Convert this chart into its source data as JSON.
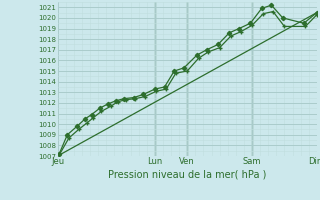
{
  "title": "Pression niveau de la mer( hPa )",
  "bg_color": "#cce8ec",
  "grid_major_color": "#aacccc",
  "grid_minor_color": "#c0dede",
  "line_color": "#2d6e2d",
  "ylim": [
    1007,
    1021.5
  ],
  "yticks": [
    1007,
    1008,
    1009,
    1010,
    1011,
    1012,
    1013,
    1014,
    1015,
    1016,
    1017,
    1018,
    1019,
    1020,
    1021
  ],
  "day_labels": [
    "Jeu",
    "Lun",
    "Ven",
    "Sam",
    "Dim"
  ],
  "day_positions": [
    0,
    3.0,
    4.0,
    6.0,
    8.0
  ],
  "series1_x": [
    0.05,
    0.35,
    0.65,
    0.9,
    1.1,
    1.35,
    1.65,
    1.85,
    2.1,
    2.4,
    2.7,
    3.05,
    3.35,
    3.65,
    4.0,
    4.35,
    4.65,
    5.0,
    5.35,
    5.65,
    6.0,
    6.35,
    6.65,
    7.0,
    7.65,
    8.0
  ],
  "series1_y": [
    1007.1,
    1008.7,
    1009.5,
    1010.1,
    1010.6,
    1011.2,
    1011.7,
    1012.1,
    1012.3,
    1012.4,
    1012.6,
    1013.1,
    1013.3,
    1014.8,
    1015.0,
    1016.2,
    1016.8,
    1017.2,
    1018.3,
    1018.7,
    1019.3,
    1020.4,
    1020.6,
    1019.2,
    1019.2,
    1020.3
  ],
  "series2_x": [
    0.05,
    0.3,
    0.6,
    0.85,
    1.05,
    1.3,
    1.55,
    1.8,
    2.05,
    2.35,
    2.65,
    3.0,
    3.3,
    3.6,
    3.9,
    4.3,
    4.6,
    4.95,
    5.3,
    5.6,
    5.95,
    6.3,
    6.6,
    6.95,
    7.6,
    8.0
  ],
  "series2_y": [
    1007.2,
    1009.0,
    1009.8,
    1010.5,
    1010.9,
    1011.5,
    1011.9,
    1012.2,
    1012.4,
    1012.5,
    1012.8,
    1013.3,
    1013.5,
    1015.0,
    1015.3,
    1016.5,
    1017.0,
    1017.5,
    1018.6,
    1019.0,
    1019.5,
    1020.9,
    1021.2,
    1020.0,
    1019.5,
    1020.5
  ],
  "trend_x": [
    0.0,
    8.0
  ],
  "trend_y": [
    1007.0,
    1020.5
  ],
  "xlim": [
    0,
    8
  ],
  "vline_positions": [
    3.0,
    4.0,
    6.0
  ]
}
